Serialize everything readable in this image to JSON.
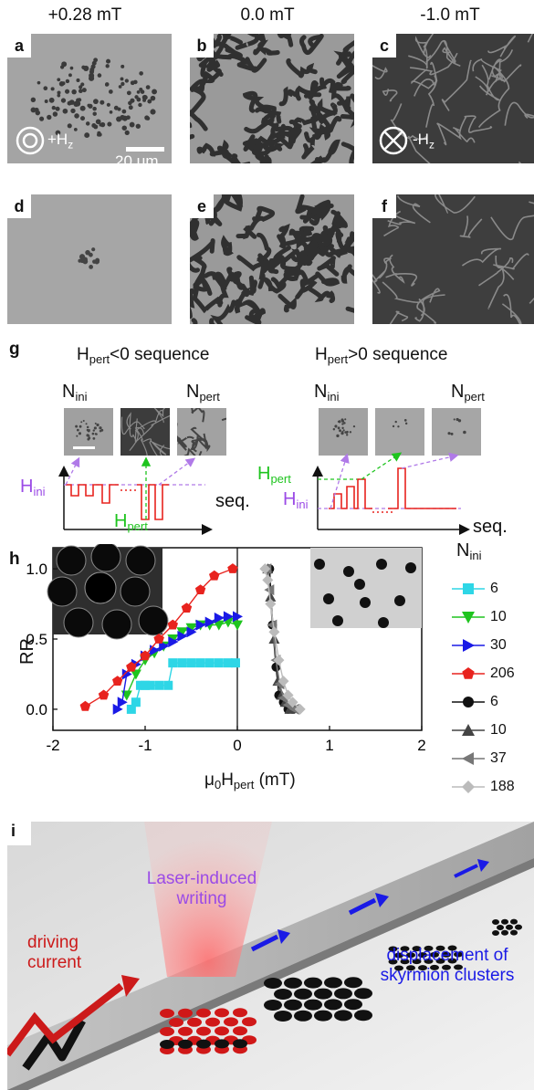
{
  "figure": {
    "columns": [
      "+0.28 mT",
      "0.0 mT",
      "-1.0 mT"
    ],
    "panel_letters": [
      "a",
      "b",
      "c",
      "d",
      "e",
      "f",
      "g",
      "h",
      "i"
    ],
    "panel_a": {
      "field_label": "+H",
      "field_sub": "z",
      "scale_label": "20 μm"
    },
    "panel_c": {
      "field_label": "-H",
      "field_sub": "z"
    },
    "panel_g": {
      "left_title_H": "H",
      "left_title_sub": "pert",
      "left_title_rest": "<0 sequence",
      "right_title_H": "H",
      "right_title_sub": "pert",
      "right_title_rest": ">0 sequence",
      "N_ini": "N",
      "N_ini_sub": "ini",
      "N_pert": "N",
      "N_pert_sub": "pert",
      "H_ini": "H",
      "H_ini_sub": "ini",
      "H_pert": "H",
      "H_pert_sub": "pert",
      "seq": "seq."
    },
    "panel_i": {
      "laser_label_1": "Laser-induced",
      "laser_label_2": "writing",
      "current_label_1": "driving",
      "current_label_2": "current",
      "displacement_label_1": "displacement of",
      "displacement_label_2": "skyrmion clusters"
    },
    "colors": {
      "red": "#e8231e",
      "green": "#1ec41e",
      "blue": "#1a1ae6",
      "cyan": "#2ed6e6",
      "purple": "#9b4be6",
      "black": "#111111"
    }
  },
  "chart_data": {
    "type": "scatter",
    "xlabel": "μ0Hpert (mT)",
    "xlabel_mu": "μ",
    "xlabel_sub0": "0",
    "xlabel_H": "H",
    "xlabel_sub": "pert",
    "xlabel_unit": " (mT)",
    "ylabel": "RR",
    "xlim": [
      -2,
      2
    ],
    "ylim": [
      -0.15,
      1.15
    ],
    "xticks": [
      "-2",
      "-1",
      "0",
      "1",
      "2"
    ],
    "yticks": [
      "0.0",
      "0.5",
      "1.0"
    ],
    "legend_title": "N",
    "legend_title_sub": "ini",
    "series": [
      {
        "name": "6",
        "color": "#2ed6e6",
        "marker": "square",
        "x": [
          -1.15,
          -1.1,
          -1.05,
          -1.0,
          -0.95,
          -0.85,
          -0.75,
          -0.7,
          -0.6,
          -0.5,
          -0.4,
          -0.3,
          -0.2,
          -0.1,
          -0.02
        ],
        "y": [
          0.0,
          0.05,
          0.17,
          0.17,
          0.17,
          0.17,
          0.17,
          0.33,
          0.33,
          0.33,
          0.33,
          0.33,
          0.33,
          0.33,
          0.33
        ]
      },
      {
        "name": "10",
        "color": "#1ec41e",
        "marker": "triangle-down",
        "x": [
          -1.2,
          -1.1,
          -1.0,
          -0.9,
          -0.8,
          -0.7,
          -0.6,
          -0.5,
          -0.4,
          -0.3,
          -0.2,
          -0.1,
          0.0
        ],
        "y": [
          0.1,
          0.25,
          0.35,
          0.4,
          0.45,
          0.5,
          0.55,
          0.58,
          0.6,
          0.6,
          0.6,
          0.62,
          0.6
        ]
      },
      {
        "name": "30",
        "color": "#1a1ae6",
        "marker": "triangle-right",
        "x": [
          -1.3,
          -1.25,
          -1.2,
          -1.1,
          -1.0,
          -0.9,
          -0.8,
          -0.7,
          -0.6,
          -0.5,
          -0.4,
          -0.3,
          -0.2,
          -0.1,
          0.0
        ],
        "y": [
          0.0,
          0.05,
          0.25,
          0.32,
          0.38,
          0.42,
          0.45,
          0.48,
          0.52,
          0.55,
          0.6,
          0.62,
          0.65,
          0.66,
          0.66
        ]
      },
      {
        "name": "206",
        "color": "#e8231e",
        "marker": "pentagon",
        "x": [
          -1.65,
          -1.45,
          -1.3,
          -1.15,
          -1.0,
          -0.85,
          -0.7,
          -0.55,
          -0.4,
          -0.25,
          -0.05
        ],
        "y": [
          0.02,
          0.1,
          0.2,
          0.3,
          0.38,
          0.5,
          0.6,
          0.72,
          0.85,
          0.95,
          1.0
        ]
      },
      {
        "name": "6",
        "color": "#111111",
        "marker": "circle",
        "x": [
          0.35,
          0.38,
          0.42,
          0.45,
          0.5,
          0.55,
          0.6
        ],
        "y": [
          1.0,
          0.6,
          0.3,
          0.1,
          0.05,
          0.0,
          0.0
        ]
      },
      {
        "name": "10",
        "color": "#444444",
        "marker": "triangle-up",
        "x": [
          0.33,
          0.36,
          0.4,
          0.44,
          0.48,
          0.52,
          0.57
        ],
        "y": [
          1.0,
          0.8,
          0.5,
          0.2,
          0.1,
          0.05,
          0.0
        ]
      },
      {
        "name": "37",
        "color": "#777777",
        "marker": "triangle-left",
        "x": [
          0.32,
          0.35,
          0.38,
          0.42,
          0.46,
          0.5,
          0.55,
          0.62
        ],
        "y": [
          1.0,
          0.85,
          0.6,
          0.35,
          0.18,
          0.08,
          0.03,
          0.0
        ]
      },
      {
        "name": "188",
        "color": "#bbbbbb",
        "marker": "diamond",
        "x": [
          0.3,
          0.33,
          0.36,
          0.4,
          0.45,
          0.5,
          0.55,
          0.6,
          0.68
        ],
        "y": [
          1.0,
          0.92,
          0.75,
          0.55,
          0.35,
          0.2,
          0.1,
          0.05,
          0.0
        ]
      }
    ]
  }
}
